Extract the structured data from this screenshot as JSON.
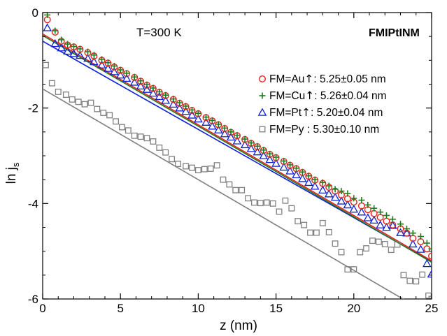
{
  "chart_data": {
    "type": "scatter",
    "xlabel": "z (nm)",
    "ylabel": "ln j",
    "ylabel_subscript": "s",
    "xlim": [
      0,
      25
    ],
    "ylim": [
      -6,
      0
    ],
    "xticks": [
      0,
      5,
      10,
      15,
      20,
      25
    ],
    "yticks": [
      0,
      -2,
      -4,
      -6
    ],
    "xtick_labels": [
      "0",
      "5",
      "10",
      "15",
      "20",
      "25"
    ],
    "ytick_labels": [
      "0",
      "-2",
      "-4",
      "-6"
    ],
    "grid": false,
    "legend_position": "right",
    "annotations": {
      "temperature": "T=300 K",
      "structure": "FMIPtINM"
    },
    "series": [
      {
        "label_prefix": "FM=Au",
        "label_suffix": ": 5.25",
        "label_pm": "±",
        "label_value": "0.05 nm",
        "marker": "circle",
        "color": "#e8211a",
        "points": [
          [
            0.3,
            -0.15
          ],
          [
            0.8,
            -0.41
          ],
          [
            1.2,
            -0.6
          ],
          [
            1.6,
            -0.68
          ],
          [
            2.0,
            -0.72
          ],
          [
            2.4,
            -0.77
          ],
          [
            2.9,
            -0.84
          ],
          [
            3.3,
            -0.91
          ],
          [
            3.8,
            -1.0
          ],
          [
            4.2,
            -1.06
          ],
          [
            4.6,
            -1.14
          ],
          [
            5.0,
            -1.21
          ],
          [
            5.4,
            -1.28
          ],
          [
            5.9,
            -1.36
          ],
          [
            6.3,
            -1.44
          ],
          [
            6.7,
            -1.52
          ],
          [
            7.1,
            -1.59
          ],
          [
            7.5,
            -1.67
          ],
          [
            7.9,
            -1.74
          ],
          [
            8.4,
            -1.82
          ],
          [
            8.8,
            -1.9
          ],
          [
            9.2,
            -1.97
          ],
          [
            9.6,
            -2.05
          ],
          [
            10.0,
            -2.12
          ],
          [
            10.5,
            -2.2
          ],
          [
            10.9,
            -2.27
          ],
          [
            11.3,
            -2.35
          ],
          [
            11.7,
            -2.43
          ],
          [
            12.1,
            -2.51
          ],
          [
            12.5,
            -2.58
          ],
          [
            13.0,
            -2.66
          ],
          [
            13.4,
            -2.74
          ],
          [
            13.8,
            -2.81
          ],
          [
            14.2,
            -2.89
          ],
          [
            14.6,
            -2.97
          ],
          [
            15.0,
            -3.04
          ],
          [
            15.5,
            -3.12
          ],
          [
            15.9,
            -3.2
          ],
          [
            16.3,
            -3.27
          ],
          [
            16.7,
            -3.35
          ],
          [
            17.1,
            -3.43
          ],
          [
            17.5,
            -3.51
          ],
          [
            18.0,
            -3.58
          ],
          [
            18.4,
            -3.66
          ],
          [
            18.8,
            -3.74
          ],
          [
            19.2,
            -3.82
          ],
          [
            19.6,
            -3.9
          ],
          [
            20.0,
            -3.97
          ],
          [
            20.5,
            -4.05
          ],
          [
            20.9,
            -4.13
          ],
          [
            21.3,
            -4.21
          ],
          [
            21.7,
            -4.29
          ],
          [
            22.1,
            -4.37
          ],
          [
            22.5,
            -4.45
          ],
          [
            23.0,
            -4.53
          ],
          [
            23.4,
            -4.62
          ],
          [
            23.8,
            -4.73
          ],
          [
            24.3,
            -4.8
          ],
          [
            24.7,
            -4.95
          ],
          [
            25.0,
            -5.1
          ]
        ],
        "fit": [
          [
            0,
            -0.45
          ],
          [
            25,
            -5.2
          ]
        ]
      },
      {
        "label_prefix": "FM=Cu",
        "label_suffix": ": 5.26",
        "label_pm": "±",
        "label_value": "0.04 nm",
        "marker": "plus",
        "color": "#1f7a1f",
        "points": [
          [
            0.3,
            -0.05
          ],
          [
            0.8,
            -0.38
          ],
          [
            1.2,
            -0.57
          ],
          [
            1.6,
            -0.66
          ],
          [
            2.0,
            -0.71
          ],
          [
            2.4,
            -0.76
          ],
          [
            2.9,
            -0.82
          ],
          [
            3.3,
            -0.89
          ],
          [
            3.8,
            -0.98
          ],
          [
            4.2,
            -1.05
          ],
          [
            4.6,
            -1.12
          ],
          [
            5.0,
            -1.2
          ],
          [
            5.4,
            -1.27
          ],
          [
            5.9,
            -1.35
          ],
          [
            6.3,
            -1.43
          ],
          [
            6.7,
            -1.51
          ],
          [
            7.1,
            -1.58
          ],
          [
            7.5,
            -1.66
          ],
          [
            7.9,
            -1.73
          ],
          [
            8.4,
            -1.81
          ],
          [
            8.8,
            -1.89
          ],
          [
            9.2,
            -1.96
          ],
          [
            9.6,
            -2.04
          ],
          [
            10.0,
            -2.11
          ],
          [
            10.5,
            -2.19
          ],
          [
            10.9,
            -2.26
          ],
          [
            11.3,
            -2.34
          ],
          [
            11.7,
            -2.42
          ],
          [
            12.1,
            -2.5
          ],
          [
            12.5,
            -2.57
          ],
          [
            13.0,
            -2.65
          ],
          [
            13.4,
            -2.73
          ],
          [
            13.8,
            -2.8
          ],
          [
            14.2,
            -2.88
          ],
          [
            14.6,
            -2.96
          ],
          [
            15.0,
            -3.03
          ],
          [
            15.5,
            -3.11
          ],
          [
            15.9,
            -3.19
          ],
          [
            16.3,
            -3.26
          ],
          [
            16.7,
            -3.34
          ],
          [
            17.1,
            -3.42
          ],
          [
            17.5,
            -3.5
          ],
          [
            18.0,
            -3.56
          ],
          [
            18.4,
            -3.63
          ],
          [
            18.8,
            -3.7
          ],
          [
            19.2,
            -3.74
          ],
          [
            19.6,
            -3.79
          ],
          [
            20.0,
            -3.89
          ],
          [
            20.5,
            -3.93
          ],
          [
            20.9,
            -4.03
          ],
          [
            21.3,
            -4.1
          ],
          [
            21.7,
            -4.18
          ],
          [
            22.1,
            -4.25
          ],
          [
            22.5,
            -4.33
          ],
          [
            23.0,
            -4.43
          ],
          [
            23.4,
            -4.53
          ],
          [
            23.8,
            -4.62
          ],
          [
            24.3,
            -4.69
          ],
          [
            24.7,
            -4.83
          ],
          [
            25.0,
            -4.95
          ]
        ],
        "fit": [
          [
            0,
            -0.48
          ],
          [
            25,
            -5.23
          ]
        ]
      },
      {
        "label_prefix": "FM=Pt",
        "label_suffix": ": 5.20",
        "label_pm": "±",
        "label_value": "0.04 nm",
        "marker": "triangle",
        "color": "#0d1fd6",
        "points": [
          [
            0.3,
            -0.32
          ],
          [
            0.8,
            -0.65
          ],
          [
            1.2,
            -0.74
          ],
          [
            1.6,
            -0.81
          ],
          [
            2.0,
            -0.86
          ],
          [
            2.4,
            -0.9
          ],
          [
            2.9,
            -0.96
          ],
          [
            3.3,
            -1.03
          ],
          [
            3.8,
            -1.1
          ],
          [
            4.2,
            -1.17
          ],
          [
            4.6,
            -1.24
          ],
          [
            5.0,
            -1.31
          ],
          [
            5.4,
            -1.38
          ],
          [
            5.9,
            -1.46
          ],
          [
            6.3,
            -1.54
          ],
          [
            6.7,
            -1.61
          ],
          [
            7.1,
            -1.69
          ],
          [
            7.5,
            -1.76
          ],
          [
            7.9,
            -1.84
          ],
          [
            8.4,
            -1.92
          ],
          [
            8.8,
            -2.0
          ],
          [
            9.2,
            -2.07
          ],
          [
            9.6,
            -2.15
          ],
          [
            10.0,
            -2.23
          ],
          [
            10.5,
            -2.3
          ],
          [
            10.9,
            -2.38
          ],
          [
            11.3,
            -2.46
          ],
          [
            11.7,
            -2.54
          ],
          [
            12.1,
            -2.61
          ],
          [
            12.5,
            -2.69
          ],
          [
            13.0,
            -2.77
          ],
          [
            13.4,
            -2.85
          ],
          [
            13.8,
            -2.92
          ],
          [
            14.2,
            -3.0
          ],
          [
            14.6,
            -3.08
          ],
          [
            15.0,
            -3.16
          ],
          [
            15.5,
            -3.24
          ],
          [
            15.9,
            -3.32
          ],
          [
            16.3,
            -3.4
          ],
          [
            16.7,
            -3.48
          ],
          [
            17.1,
            -3.56
          ],
          [
            17.5,
            -3.64
          ],
          [
            18.0,
            -3.72
          ],
          [
            18.4,
            -3.8
          ],
          [
            18.8,
            -3.87
          ],
          [
            19.2,
            -3.95
          ],
          [
            19.6,
            -4.03
          ],
          [
            20.0,
            -4.12
          ],
          [
            20.5,
            -4.18
          ],
          [
            20.9,
            -4.3
          ],
          [
            21.3,
            -4.35
          ],
          [
            21.7,
            -4.45
          ],
          [
            22.1,
            -4.5
          ],
          [
            22.5,
            -4.46
          ],
          [
            23.0,
            -4.61
          ],
          [
            23.4,
            -4.62
          ],
          [
            23.8,
            -4.85
          ],
          [
            24.3,
            -4.96
          ],
          [
            24.7,
            -5.26
          ],
          [
            25.0,
            -5.48
          ]
        ],
        "fit": [
          [
            0,
            -0.6
          ],
          [
            25,
            -5.22
          ]
        ]
      },
      {
        "label_prefix": "FM=Py",
        "label_suffix": "   : 5.30",
        "label_pm": "±",
        "label_value": "0.10 nm",
        "marker": "square",
        "color": "#808080",
        "points": [
          [
            0.2,
            -1.1
          ],
          [
            0.6,
            -1.48
          ],
          [
            1.0,
            -1.66
          ],
          [
            1.5,
            -1.72
          ],
          [
            1.9,
            -1.82
          ],
          [
            2.3,
            -1.87
          ],
          [
            2.7,
            -1.92
          ],
          [
            3.1,
            -1.89
          ],
          [
            3.5,
            -2.02
          ],
          [
            3.9,
            -2.1
          ],
          [
            4.3,
            -2.15
          ],
          [
            4.7,
            -2.28
          ],
          [
            5.1,
            -2.4
          ],
          [
            5.5,
            -2.47
          ],
          [
            5.9,
            -2.58
          ],
          [
            6.3,
            -2.6
          ],
          [
            6.7,
            -2.63
          ],
          [
            7.1,
            -2.7
          ],
          [
            7.5,
            -2.83
          ],
          [
            7.9,
            -2.93
          ],
          [
            8.3,
            -3.07
          ],
          [
            8.7,
            -3.17
          ],
          [
            9.2,
            -3.22
          ],
          [
            9.6,
            -3.25
          ],
          [
            10.0,
            -3.3
          ],
          [
            10.4,
            -3.28
          ],
          [
            10.8,
            -3.27
          ],
          [
            11.2,
            -3.2
          ],
          [
            11.6,
            -3.5
          ],
          [
            12.0,
            -3.6
          ],
          [
            12.4,
            -3.72
          ],
          [
            12.8,
            -3.72
          ],
          [
            13.2,
            -3.89
          ],
          [
            13.6,
            -3.98
          ],
          [
            14.0,
            -3.99
          ],
          [
            14.4,
            -3.98
          ],
          [
            14.8,
            -4.0
          ],
          [
            15.2,
            -4.17
          ],
          [
            15.6,
            -3.94
          ],
          [
            16.0,
            -4.1
          ],
          [
            16.4,
            -4.37
          ],
          [
            16.8,
            -4.45
          ],
          [
            17.2,
            -4.61
          ],
          [
            17.6,
            -4.61
          ],
          [
            18.0,
            -4.41
          ],
          [
            18.4,
            -4.6
          ],
          [
            18.8,
            -4.84
          ],
          [
            19.2,
            -5.02
          ],
          [
            19.6,
            -5.38
          ],
          [
            20.0,
            -5.38
          ],
          [
            20.4,
            -5.02
          ],
          [
            20.8,
            -4.94
          ],
          [
            21.2,
            -4.78
          ],
          [
            21.6,
            -4.8
          ],
          [
            22.0,
            -4.85
          ],
          [
            22.4,
            -4.97
          ],
          [
            22.8,
            -4.86
          ],
          [
            23.2,
            -5.5
          ],
          [
            23.6,
            -5.62
          ],
          [
            24.0,
            -5.63
          ],
          [
            24.4,
            -5.49
          ],
          [
            24.8,
            -5.93
          ],
          [
            25.0,
            -6.0
          ]
        ],
        "fit": [
          [
            0,
            -1.6
          ],
          [
            25,
            -6.35
          ]
        ]
      }
    ]
  }
}
